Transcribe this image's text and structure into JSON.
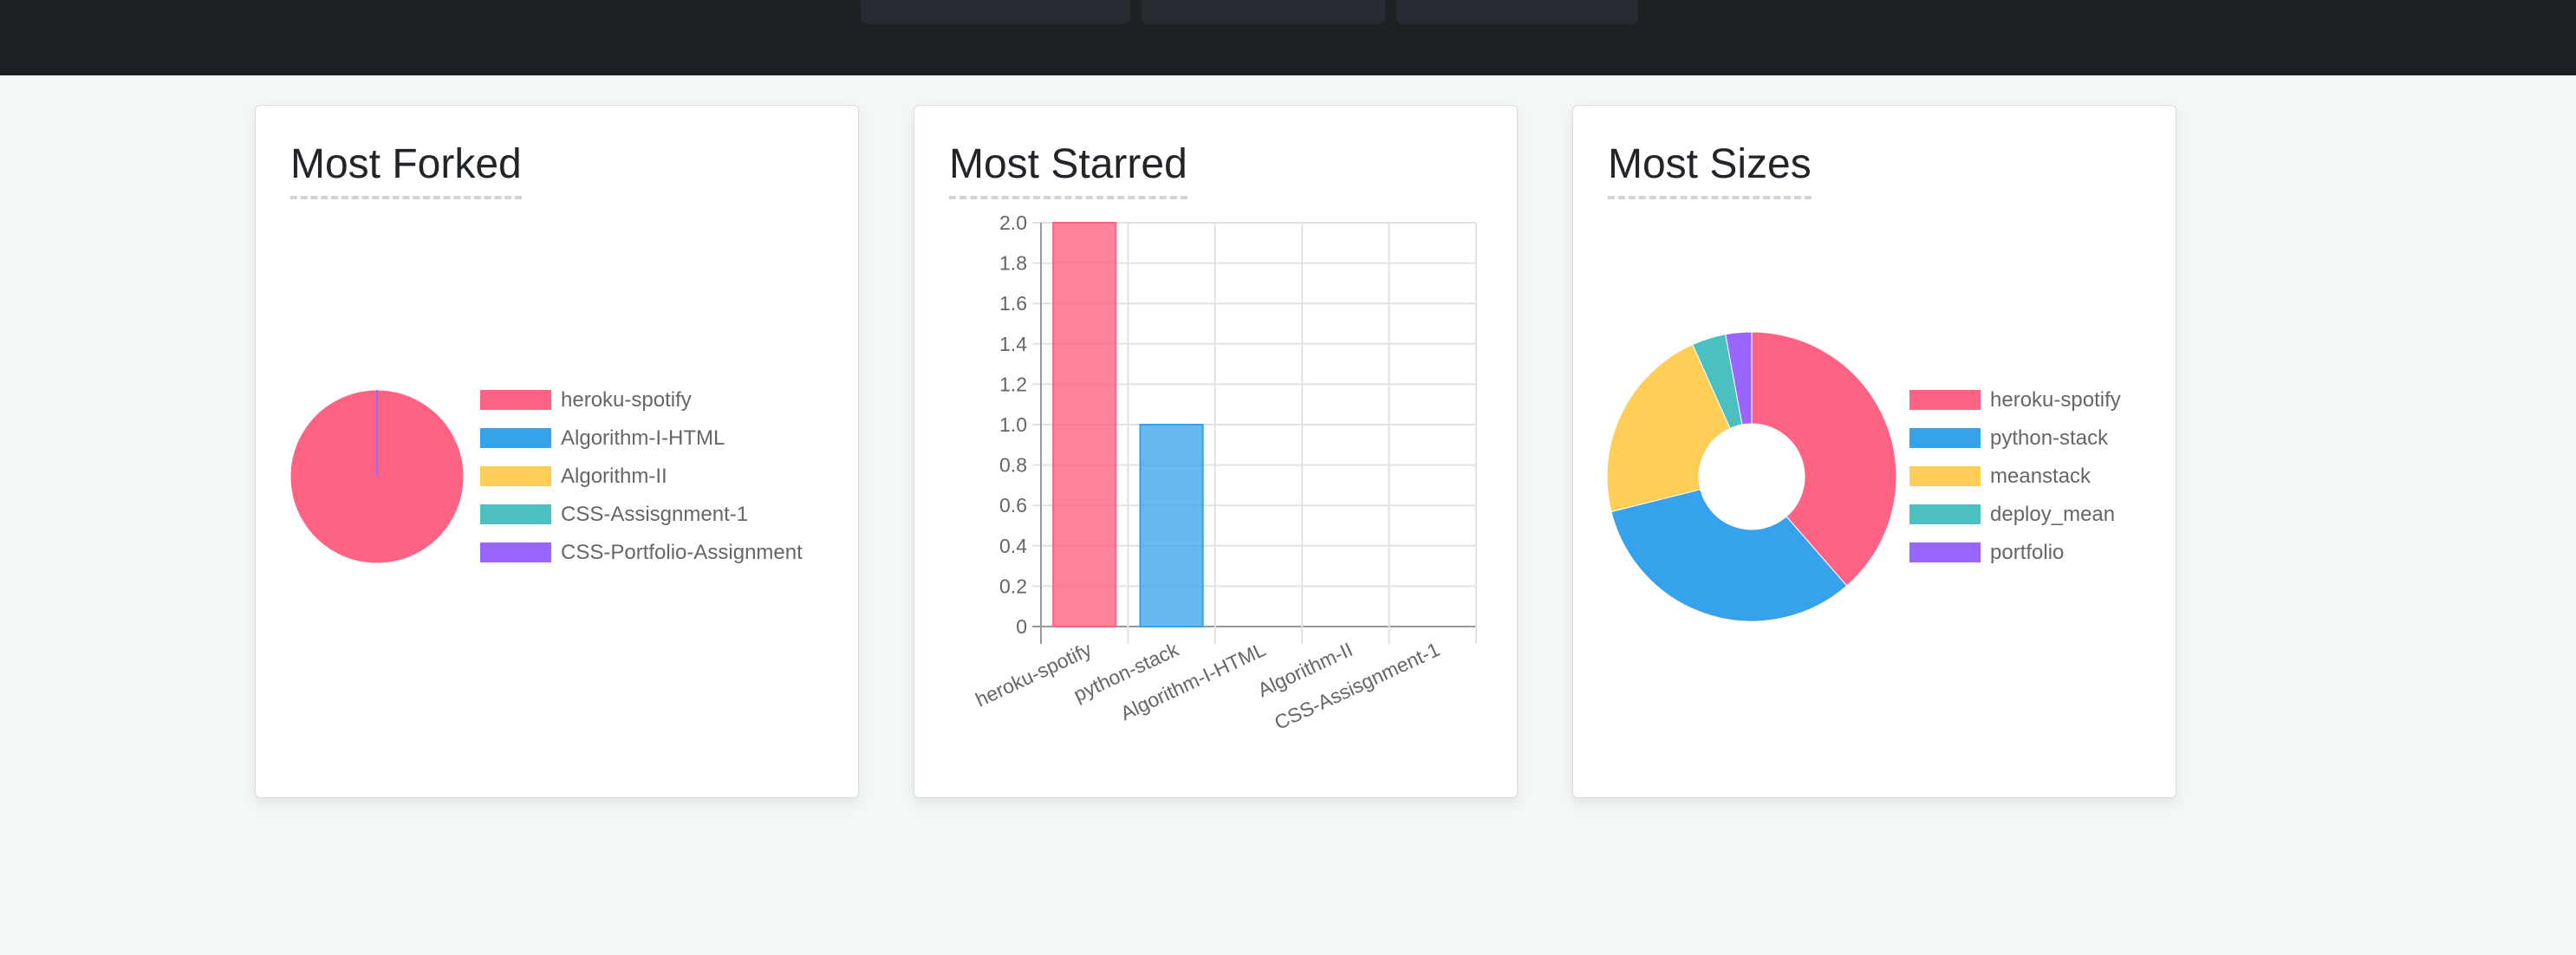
{
  "colors": {
    "topbar": "#1e2124",
    "background": "#f4f7f8"
  },
  "palette": [
    "#ff6384",
    "#36a2eb",
    "#ffce56",
    "#4bc0c0",
    "#9966ff"
  ],
  "cards": [
    {
      "title": "Most Forked"
    },
    {
      "title": "Most Starred"
    },
    {
      "title": "Most Sizes"
    }
  ],
  "chart_data": [
    {
      "type": "pie",
      "title": "Most Forked",
      "labels": [
        "heroku-spotify",
        "Algorithm-I-HTML",
        "Algorithm-II",
        "CSS-Assisgnment-1",
        "CSS-Portfolio-Assignment"
      ],
      "values": [
        1,
        0,
        0,
        0,
        0
      ],
      "legend": "right"
    },
    {
      "type": "bar",
      "title": "Most Starred",
      "categories": [
        "heroku-spotify",
        "python-stack",
        "Algorithm-I-HTML",
        "Algorithm-II",
        "CSS-Assisgnment-1"
      ],
      "values": [
        2,
        1,
        0,
        0,
        0
      ],
      "ylim": [
        0,
        2
      ],
      "yticks": [
        "0",
        "0.2",
        "0.4",
        "0.6",
        "0.8",
        "1.0",
        "1.2",
        "1.4",
        "1.6",
        "1.8",
        "2.0"
      ],
      "grid": true
    },
    {
      "type": "doughnut",
      "title": "Most Sizes",
      "labels": [
        "heroku-spotify",
        "python-stack",
        "meanstack",
        "deploy_mean",
        "portfolio"
      ],
      "values": [
        38.6,
        32.5,
        22.2,
        3.8,
        2.9
      ],
      "value_unit": "percent share (estimated)",
      "legend": "right"
    }
  ]
}
